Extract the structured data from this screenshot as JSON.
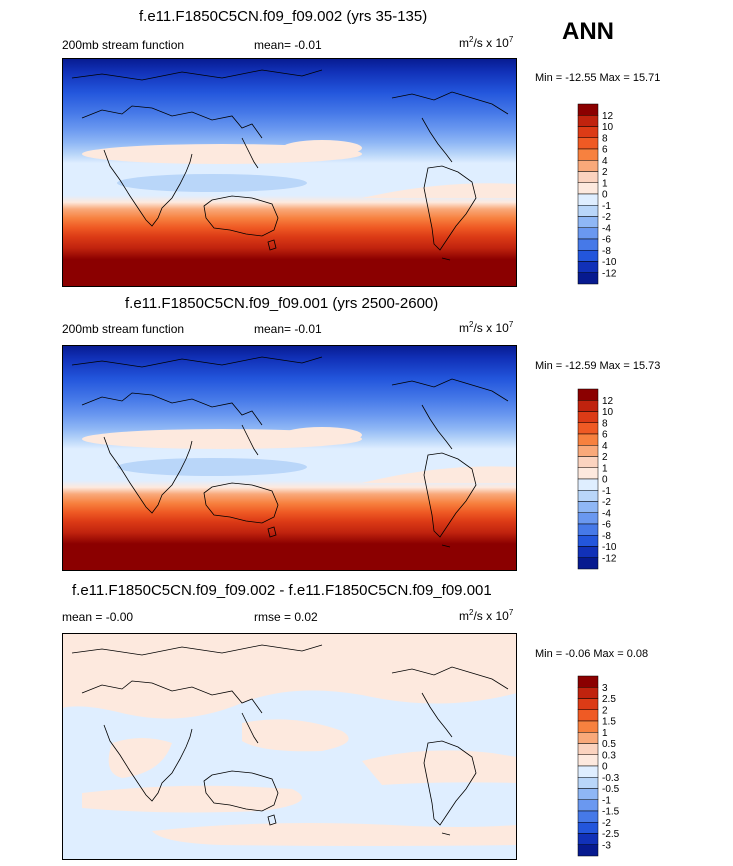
{
  "season": "ANN",
  "units_base": "m",
  "units_exp1": "2",
  "units_mid": "/s x 10",
  "units_exp2": "7",
  "panels": [
    {
      "title": "f.e11.F1850C5CN.f09_f09.002 (yrs 35-135)",
      "left_label": "200mb stream function",
      "mid_label": "mean=  -0.01",
      "minmax": "Min = -12.55 Max =  15.71",
      "colorbar": {
        "labels": [
          "12",
          "10",
          "8",
          "6",
          "4",
          "2",
          "1",
          "0",
          "-1",
          "-2",
          "-4",
          "-6",
          "-8",
          "-10",
          "-12"
        ],
        "colors": [
          "#8b0000",
          "#c0230e",
          "#dc3b16",
          "#ef5a24",
          "#f7813f",
          "#f9a97a",
          "#fbd3bf",
          "#fde9de",
          "#dfeeff",
          "#b9d6f9",
          "#8fb7f5",
          "#6a98f0",
          "#4679e8",
          "#2356dc",
          "#1131b8",
          "#071a8f"
        ]
      }
    },
    {
      "title": "f.e11.F1850C5CN.f09_f09.001 (yrs 2500-2600)",
      "left_label": "200mb stream function",
      "mid_label": "mean=  -0.01",
      "minmax": "Min = -12.59 Max =  15.73",
      "colorbar": {
        "labels": [
          "12",
          "10",
          "8",
          "6",
          "4",
          "2",
          "1",
          "0",
          "-1",
          "-2",
          "-4",
          "-6",
          "-8",
          "-10",
          "-12"
        ],
        "colors": [
          "#8b0000",
          "#c0230e",
          "#dc3b16",
          "#ef5a24",
          "#f7813f",
          "#f9a97a",
          "#fbd3bf",
          "#fde9de",
          "#dfeeff",
          "#b9d6f9",
          "#8fb7f5",
          "#6a98f0",
          "#4679e8",
          "#2356dc",
          "#1131b8",
          "#071a8f"
        ]
      }
    },
    {
      "title": "f.e11.F1850C5CN.f09_f09.002 - f.e11.F1850C5CN.f09_f09.001",
      "left_label": "mean =  -0.00",
      "mid_label": "rmse =   0.02",
      "minmax": "Min =  -0.06 Max =   0.08",
      "colorbar": {
        "labels": [
          "3",
          "2.5",
          "2",
          "1.5",
          "1",
          "0.5",
          "0.3",
          "0",
          "-0.3",
          "-0.5",
          "-1",
          "-1.5",
          "-2",
          "-2.5",
          "-3"
        ],
        "colors": [
          "#8b0000",
          "#c0230e",
          "#dc3b16",
          "#ef5a24",
          "#f7813f",
          "#f9a97a",
          "#fbd3bf",
          "#fde9de",
          "#dfeeff",
          "#b9d6f9",
          "#8fb7f5",
          "#6a98f0",
          "#4679e8",
          "#2356dc",
          "#1131b8",
          "#071a8f"
        ]
      }
    }
  ]
}
